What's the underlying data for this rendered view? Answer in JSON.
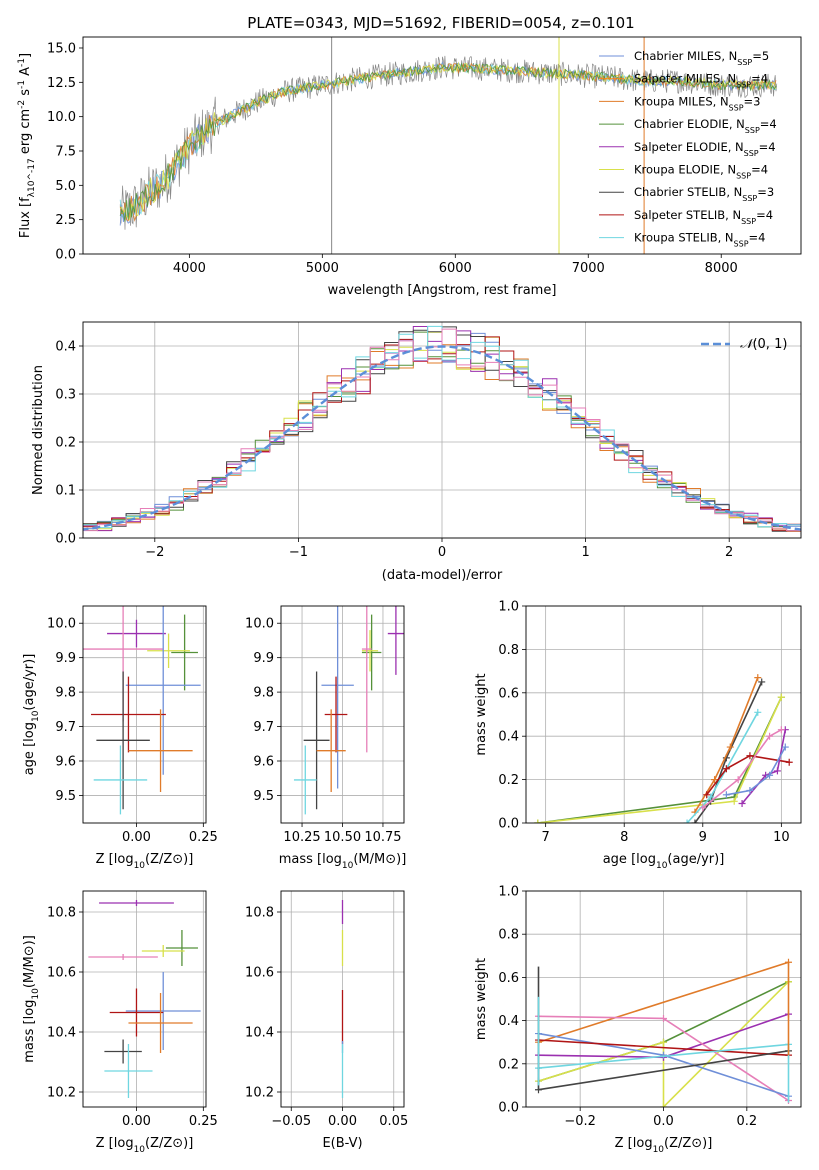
{
  "figure": {
    "title": "PLATE=0343, MJD=51692, FIBERID=0054, z=0.101"
  },
  "colors": {
    "Chabrier MILES": "#6f8fd8",
    "Salpeter MILES": "#ff7f0e",
    "Kroupa MILES": "#e07b2a",
    "Chabrier ELODIE": "#55913a",
    "Salpeter ELODIE": "#9b30b0",
    "Kroupa ELODIE": "#d8e04a",
    "Chabrier STELIB": "#444444",
    "Salpeter STELIB": "#b01515",
    "Kroupa STELIB": "#6fd6e0",
    "Pink": "#e67fb8",
    "Data": "#888888",
    "Normal": "#5b8fd8"
  },
  "chart_data": [
    {
      "id": "spectrum",
      "type": "line",
      "title": "PLATE=0343, MJD=51692, FIBERID=0054, z=0.101",
      "xlabel": "wavelength [Angstrom, rest frame]",
      "ylabel": "Flux [f_λ10^-17 erg cm^-2 s^-1 A^-1]",
      "xlim": [
        3200,
        8600
      ],
      "ylim": [
        0,
        15.8
      ],
      "xticks": [
        4000,
        5000,
        6000,
        7000,
        8000
      ],
      "yticks": [
        0.0,
        2.5,
        5.0,
        7.5,
        10.0,
        12.5,
        15.0
      ],
      "grid": false,
      "legend_position": "top-right",
      "legend": [
        "Chabrier MILES, N_SSP=5",
        "Salpeter MILES, N_SSP=4",
        "Kroupa MILES, N_SSP=3",
        "Chabrier ELODIE, N_SSP=4",
        "Salpeter ELODIE, N_SSP=4",
        "Kroupa ELODIE, N_SSP=4",
        "Chabrier STELIB, N_SSP=3",
        "Salpeter STELIB, N_SSP=4",
        "Kroupa STELIB, N_SSP=4"
      ],
      "continuum": {
        "x": [
          3500,
          3600,
          3700,
          3800,
          3900,
          4000,
          4100,
          4200,
          4300,
          4500,
          4700,
          5000,
          5300,
          5600,
          5900,
          6200,
          6500,
          6800,
          7100,
          7400,
          7700,
          8000,
          8400
        ],
        "y": [
          3.0,
          3.5,
          4.5,
          5.2,
          6.5,
          7.8,
          8.8,
          9.5,
          10.0,
          11.0,
          11.8,
          12.3,
          12.8,
          13.2,
          13.6,
          13.5,
          13.3,
          13.1,
          12.9,
          12.6,
          12.6,
          12.3,
          12.3
        ]
      },
      "spikes_x": [
        5070,
        6780,
        7420
      ]
    },
    {
      "id": "residuals",
      "type": "line",
      "xlabel": "(data-model)/error",
      "ylabel": "Normed distribution",
      "xlim": [
        -2.5,
        2.5
      ],
      "ylim": [
        0,
        0.45
      ],
      "xticks": [
        -2,
        -1,
        0,
        1,
        2
      ],
      "yticks": [
        0.0,
        0.1,
        0.2,
        0.3,
        0.4
      ],
      "grid": true,
      "legend_position": "top-right",
      "legend": [
        "N(0,1)"
      ],
      "bin_width": 0.1
    },
    {
      "id": "age-vs-Z",
      "type": "scatter",
      "xlabel": "Z [log10(Z/Z⊙)]",
      "ylabel": "age [log10(age/yr)]",
      "xlim": [
        -0.2,
        0.26
      ],
      "ylim": [
        9.42,
        10.05
      ],
      "xticks": [
        -0.0,
        0.25
      ],
      "xticklabels": [
        "0.00",
        "0.25"
      ],
      "yticks": [
        9.5,
        9.6,
        9.7,
        9.8,
        9.9,
        10.0
      ],
      "grid": true,
      "points": [
        {
          "c": "Salpeter ELODIE",
          "x": 0.0,
          "y": 9.97,
          "xerr": 0.11,
          "yerr": 0.04
        },
        {
          "c": "Chabrier ELODIE",
          "x": 0.18,
          "y": 9.915,
          "xerr": 0.05,
          "yerr": 0.11
        },
        {
          "c": "Kroupa ELODIE",
          "x": 0.12,
          "y": 9.92,
          "xerr": 0.08,
          "yerr": 0.05
        },
        {
          "c": "Pink",
          "x": -0.05,
          "y": 9.925,
          "xerr": 0.15,
          "yerr": 0.21
        },
        {
          "c": "Chabrier MILES",
          "x": 0.1,
          "y": 9.82,
          "xerr": 0.14,
          "yerr": 0.26
        },
        {
          "c": "Salpeter STELIB",
          "x": -0.03,
          "y": 9.735,
          "xerr": 0.14,
          "yerr": 0.11
        },
        {
          "c": "Chabrier STELIB",
          "x": -0.05,
          "y": 9.66,
          "xerr": 0.1,
          "yerr": 0.2
        },
        {
          "c": "Kroupa MILES",
          "x": 0.09,
          "y": 9.63,
          "xerr": 0.12,
          "yerr": 0.12
        },
        {
          "c": "Kroupa STELIB",
          "x": -0.06,
          "y": 9.545,
          "xerr": 0.1,
          "yerr": 0.1
        }
      ]
    },
    {
      "id": "age-vs-mass",
      "type": "scatter",
      "xlabel": "mass [log10(M/M⊙)]",
      "ylabel": "",
      "xlim": [
        10.12,
        10.88
      ],
      "ylim": [
        9.42,
        10.05
      ],
      "xticks": [
        10.25,
        10.5,
        10.75
      ],
      "xticklabels": [
        "10.25",
        "10.50",
        "10.75"
      ],
      "yticks": [
        9.5,
        9.6,
        9.7,
        9.8,
        9.9,
        10.0
      ],
      "grid": true,
      "points": [
        {
          "c": "Salpeter ELODIE",
          "x": 10.83,
          "y": 9.97,
          "xerr": 0.05,
          "yerr": 0.12
        },
        {
          "c": "Chabrier ELODIE",
          "x": 10.68,
          "y": 9.915,
          "xerr": 0.06,
          "yerr": 0.11
        },
        {
          "c": "Kroupa ELODIE",
          "x": 10.67,
          "y": 9.92,
          "xerr": 0.05,
          "yerr": 0.06
        },
        {
          "c": "Pink",
          "x": 10.65,
          "y": 9.925,
          "xerr": 0.03,
          "yerr": 0.3
        },
        {
          "c": "Chabrier MILES",
          "x": 10.47,
          "y": 9.82,
          "xerr": 0.1,
          "yerr": 0.3
        },
        {
          "c": "Salpeter STELIB",
          "x": 10.46,
          "y": 9.735,
          "xerr": 0.07,
          "yerr": 0.11
        },
        {
          "c": "Chabrier STELIB",
          "x": 10.34,
          "y": 9.66,
          "xerr": 0.08,
          "yerr": 0.2
        },
        {
          "c": "Kroupa MILES",
          "x": 10.43,
          "y": 9.63,
          "xerr": 0.09,
          "yerr": 0.12
        },
        {
          "c": "Kroupa STELIB",
          "x": 10.27,
          "y": 9.545,
          "xerr": 0.07,
          "yerr": 0.1
        }
      ]
    },
    {
      "id": "cumulative-age",
      "type": "line",
      "xlabel": "age [log10(age/yr)]",
      "ylabel": "mass weight",
      "xlim": [
        6.75,
        10.25
      ],
      "ylim": [
        0,
        1.0
      ],
      "xticks": [
        7,
        8,
        9,
        10
      ],
      "yticks": [
        0.0,
        0.2,
        0.4,
        0.6,
        0.8,
        1.0
      ],
      "grid": true,
      "series": [
        {
          "c": "Chabrier ELODIE",
          "x": [
            6.9,
            9.4,
            10.0
          ],
          "y": [
            0.0,
            0.12,
            0.58
          ]
        },
        {
          "c": "Kroupa ELODIE",
          "x": [
            6.9,
            9.4,
            10.0
          ],
          "y": [
            0.0,
            0.1,
            0.58
          ]
        },
        {
          "c": "Chabrier STELIB",
          "x": [
            8.9,
            9.1,
            9.3,
            9.75
          ],
          "y": [
            0.0,
            0.1,
            0.3,
            0.65
          ]
        },
        {
          "c": "Kroupa MILES",
          "x": [
            8.9,
            9.15,
            9.35,
            9.7
          ],
          "y": [
            0.05,
            0.2,
            0.35,
            0.67
          ]
        },
        {
          "c": "Kroupa STELIB",
          "x": [
            8.8,
            9.1,
            9.3,
            9.7
          ],
          "y": [
            0.0,
            0.12,
            0.25,
            0.51
          ]
        },
        {
          "c": "Salpeter STELIB",
          "x": [
            9.05,
            9.3,
            9.6,
            10.1
          ],
          "y": [
            0.13,
            0.25,
            0.31,
            0.28
          ]
        },
        {
          "c": "Salpeter ELODIE",
          "x": [
            9.5,
            9.8,
            9.95,
            10.05
          ],
          "y": [
            0.09,
            0.22,
            0.24,
            0.43
          ]
        },
        {
          "c": "Chabrier MILES",
          "x": [
            9.3,
            9.6,
            9.85,
            10.05
          ],
          "y": [
            0.13,
            0.15,
            0.22,
            0.35
          ]
        },
        {
          "c": "Pink",
          "x": [
            9.0,
            9.45,
            9.85,
            10.0
          ],
          "y": [
            0.07,
            0.2,
            0.4,
            0.43
          ]
        }
      ]
    },
    {
      "id": "mass-vs-Z",
      "type": "scatter",
      "xlabel": "Z [log10(Z/Z⊙)]",
      "ylabel": "mass [log10(M/M⊙)]",
      "xlim": [
        -0.2,
        0.26
      ],
      "ylim": [
        10.15,
        10.87
      ],
      "xticks": [
        -0.0,
        0.25
      ],
      "xticklabels": [
        "0.00",
        "0.25"
      ],
      "yticks": [
        10.2,
        10.4,
        10.6,
        10.8
      ],
      "grid": true,
      "points": [
        {
          "c": "Salpeter ELODIE",
          "x": 0.0,
          "y": 10.83,
          "xerr": 0.14,
          "yerr": 0.01
        },
        {
          "c": "Chabrier ELODIE",
          "x": 0.17,
          "y": 10.68,
          "xerr": 0.06,
          "yerr": 0.06
        },
        {
          "c": "Kroupa ELODIE",
          "x": 0.1,
          "y": 10.67,
          "xerr": 0.08,
          "yerr": 0.02
        },
        {
          "c": "Pink",
          "x": -0.05,
          "y": 10.65,
          "xerr": 0.13,
          "yerr": 0.01
        },
        {
          "c": "Chabrier MILES",
          "x": 0.1,
          "y": 10.47,
          "xerr": 0.14,
          "yerr": 0.13
        },
        {
          "c": "Salpeter STELIB",
          "x": 0.0,
          "y": 10.465,
          "xerr": 0.1,
          "yerr": 0.08
        },
        {
          "c": "Chabrier STELIB",
          "x": -0.05,
          "y": 10.335,
          "xerr": 0.07,
          "yerr": 0.04
        },
        {
          "c": "Kroupa MILES",
          "x": 0.09,
          "y": 10.43,
          "xerr": 0.12,
          "yerr": 0.1
        },
        {
          "c": "Kroupa STELIB",
          "x": -0.03,
          "y": 10.27,
          "xerr": 0.09,
          "yerr": 0.09
        }
      ]
    },
    {
      "id": "mass-vs-EBV",
      "type": "scatter",
      "xlabel": "E(B-V)",
      "ylabel": "",
      "xlim": [
        -0.06,
        0.06
      ],
      "ylim": [
        10.15,
        10.87
      ],
      "xticks": [
        -0.05,
        0.0,
        0.05
      ],
      "xticklabels": [
        "−0.05",
        "0.00",
        "0.05"
      ],
      "yticks": [
        10.2,
        10.4,
        10.6,
        10.8
      ],
      "grid": true,
      "points": [
        {
          "c": "Salpeter ELODIE",
          "x": 0.0,
          "y": 10.8,
          "xerr": 0,
          "yerr": 0.04
        },
        {
          "c": "Kroupa ELODIE",
          "x": 0.0,
          "y": 10.68,
          "xerr": 0,
          "yerr": 0.06
        },
        {
          "c": "Salpeter STELIB",
          "x": 0.0,
          "y": 10.45,
          "xerr": 0,
          "yerr": 0.09
        },
        {
          "c": "Chabrier MILES",
          "x": 0.0,
          "y": 10.35,
          "xerr": 0,
          "yerr": 0.02
        },
        {
          "c": "Kroupa STELIB",
          "x": 0.0,
          "y": 10.27,
          "xerr": 0,
          "yerr": 0.09
        }
      ]
    },
    {
      "id": "cumulative-Z",
      "type": "line",
      "xlabel": "Z [log10(Z/Z⊙)]",
      "ylabel": "mass weight",
      "xlim": [
        -0.33,
        0.33
      ],
      "ylim": [
        0,
        1.0
      ],
      "xticks": [
        -0.2,
        0.0,
        0.2
      ],
      "xticklabels": [
        "−0.2",
        "0.0",
        "0.2"
      ],
      "yticks": [
        0.0,
        0.2,
        0.4,
        0.6,
        0.8,
        1.0
      ],
      "grid": true,
      "series": [
        {
          "c": "Kroupa MILES",
          "x": [
            -0.3,
            0.3
          ],
          "y": [
            0.3,
            0.67
          ]
        },
        {
          "c": "Chabrier ELODIE",
          "x": [
            -0.3,
            0.0,
            0.3
          ],
          "y": [
            0.12,
            0.3,
            0.58
          ]
        },
        {
          "c": "Kroupa ELODIE",
          "x": [
            -0.3,
            0.0,
            0.0,
            0.3
          ],
          "y": [
            0.12,
            0.3,
            0.0,
            0.58
          ]
        },
        {
          "c": "Salpeter ELODIE",
          "x": [
            -0.3,
            0.0,
            0.3
          ],
          "y": [
            0.24,
            0.23,
            0.43
          ]
        },
        {
          "c": "Pink",
          "x": [
            -0.3,
            0.0,
            0.3
          ],
          "y": [
            0.42,
            0.41,
            0.03
          ]
        },
        {
          "c": "Chabrier MILES",
          "x": [
            -0.3,
            0.0,
            0.3
          ],
          "y": [
            0.34,
            0.24,
            0.05
          ]
        },
        {
          "c": "Salpeter STELIB",
          "x": [
            -0.3,
            0.3
          ],
          "y": [
            0.31,
            0.24
          ]
        },
        {
          "c": "Chabrier STELIB",
          "x": [
            -0.3,
            0.3
          ],
          "y": [
            0.08,
            0.26
          ]
        },
        {
          "c": "Kroupa STELIB",
          "x": [
            -0.3,
            0.3
          ],
          "y": [
            0.18,
            0.29
          ]
        }
      ],
      "vertical_ticks": [
        {
          "c": "Chabrier STELIB",
          "x": -0.3,
          "y": [
            0.08,
            0.65
          ]
        },
        {
          "c": "Kroupa STELIB",
          "x": -0.3,
          "y": [
            0.1,
            0.51
          ]
        },
        {
          "c": "Kroupa STELIB",
          "x": 0.3,
          "y": [
            0.02,
            0.29
          ]
        },
        {
          "c": "Kroupa MILES",
          "x": 0.3,
          "y": [
            0.24,
            0.67
          ]
        }
      ]
    }
  ]
}
